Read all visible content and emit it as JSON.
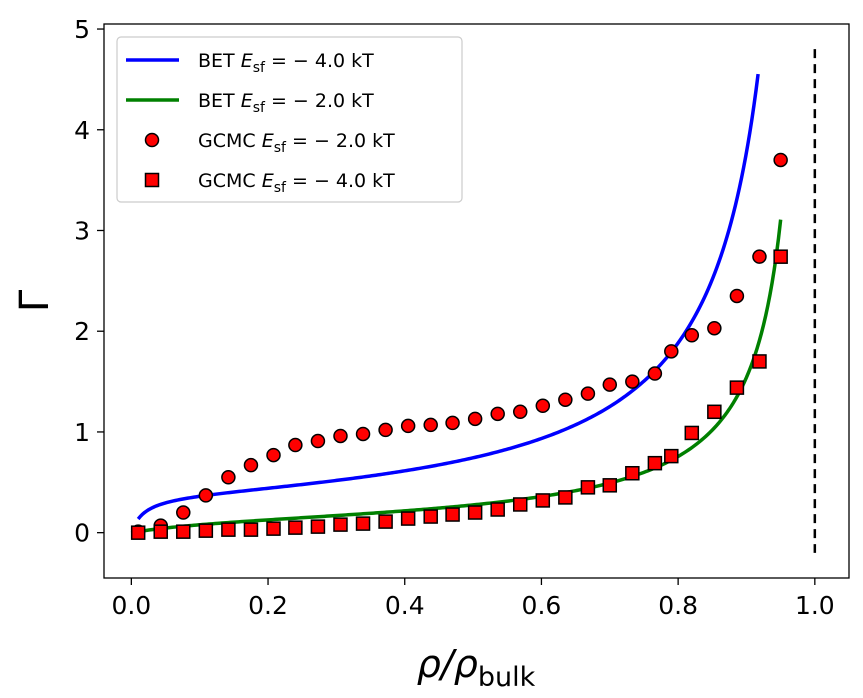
{
  "chart_data": {
    "type": "scatter",
    "xlabel": "ρ/ρ_bulk",
    "xlabel_main": "ρ/ρ",
    "xlabel_sub": "bulk",
    "ylabel": "Γ",
    "xlim": [
      -0.04,
      1.05
    ],
    "ylim": [
      -0.45,
      5.05
    ],
    "x_ticks": [
      0.0,
      0.2,
      0.4,
      0.6,
      0.8,
      1.0
    ],
    "x_tick_labels": [
      "0.0",
      "0.2",
      "0.4",
      "0.6",
      "0.8",
      "1.0"
    ],
    "y_ticks": [
      0,
      1,
      2,
      3,
      4,
      5
    ],
    "y_tick_labels": [
      "0",
      "1",
      "2",
      "3",
      "4",
      "5"
    ],
    "grid": false,
    "legend_position": "top-left",
    "series": [
      {
        "name": "BET E_sf = −4.0 kT",
        "kind": "line",
        "color": "#0000ff",
        "model": {
          "C": 54.6,
          "N": 0.3785
        },
        "x_range": [
          0.01,
          0.917
        ]
      },
      {
        "name": "BET E_sf = −2.0 kT",
        "kind": "line",
        "color": "#008000",
        "model": {
          "C": 7.39,
          "N": 0.1565
        },
        "x_range": [
          0.01,
          0.95
        ]
      },
      {
        "name": "GCMC E_sf = −2.0 kT",
        "kind": "marker",
        "marker": "circle",
        "color": "#ff0000",
        "x": [
          0.01,
          0.043,
          0.076,
          0.109,
          0.142,
          0.175,
          0.208,
          0.24,
          0.273,
          0.306,
          0.339,
          0.372,
          0.405,
          0.438,
          0.47,
          0.503,
          0.536,
          0.569,
          0.602,
          0.635,
          0.668,
          0.7,
          0.733,
          0.766,
          0.79,
          0.82,
          0.853,
          0.886,
          0.919,
          0.95
        ],
        "y": [
          0.01,
          0.07,
          0.2,
          0.37,
          0.55,
          0.67,
          0.77,
          0.87,
          0.91,
          0.96,
          0.98,
          1.02,
          1.06,
          1.07,
          1.09,
          1.13,
          1.18,
          1.2,
          1.26,
          1.32,
          1.38,
          1.47,
          1.5,
          1.58,
          1.8,
          1.96,
          2.03,
          2.35,
          2.74,
          3.7
        ]
      },
      {
        "name": "GCMC E_sf = −4.0 kT",
        "kind": "marker",
        "marker": "square",
        "color": "#ff0000",
        "x": [
          0.01,
          0.043,
          0.076,
          0.109,
          0.142,
          0.175,
          0.208,
          0.24,
          0.273,
          0.306,
          0.339,
          0.372,
          0.405,
          0.438,
          0.47,
          0.503,
          0.536,
          0.569,
          0.602,
          0.635,
          0.668,
          0.7,
          0.733,
          0.766,
          0.79,
          0.82,
          0.853,
          0.886,
          0.919,
          0.95
        ],
        "y": [
          0.0,
          0.01,
          0.01,
          0.02,
          0.03,
          0.03,
          0.04,
          0.05,
          0.06,
          0.08,
          0.09,
          0.11,
          0.14,
          0.16,
          0.18,
          0.2,
          0.23,
          0.28,
          0.32,
          0.35,
          0.45,
          0.47,
          0.59,
          0.69,
          0.76,
          0.99,
          1.2,
          1.44,
          1.7,
          2.74
        ]
      }
    ],
    "reference_line": {
      "x": 1.0,
      "y_range": [
        -0.2,
        4.8
      ],
      "style": "dashed",
      "color": "#000000"
    },
    "legend": {
      "entries": [
        {
          "prefix": "BET ",
          "var": "E",
          "sub": "sf",
          "suffix": " = − 4.0 kT"
        },
        {
          "prefix": "BET ",
          "var": "E",
          "sub": "sf",
          "suffix": " = − 2.0 kT"
        },
        {
          "prefix": "GCMC ",
          "var": "E",
          "sub": "sf",
          "suffix": " = − 2.0 kT"
        },
        {
          "prefix": "GCMC ",
          "var": "E",
          "sub": "sf",
          "suffix": " = − 4.0 kT"
        }
      ]
    }
  }
}
